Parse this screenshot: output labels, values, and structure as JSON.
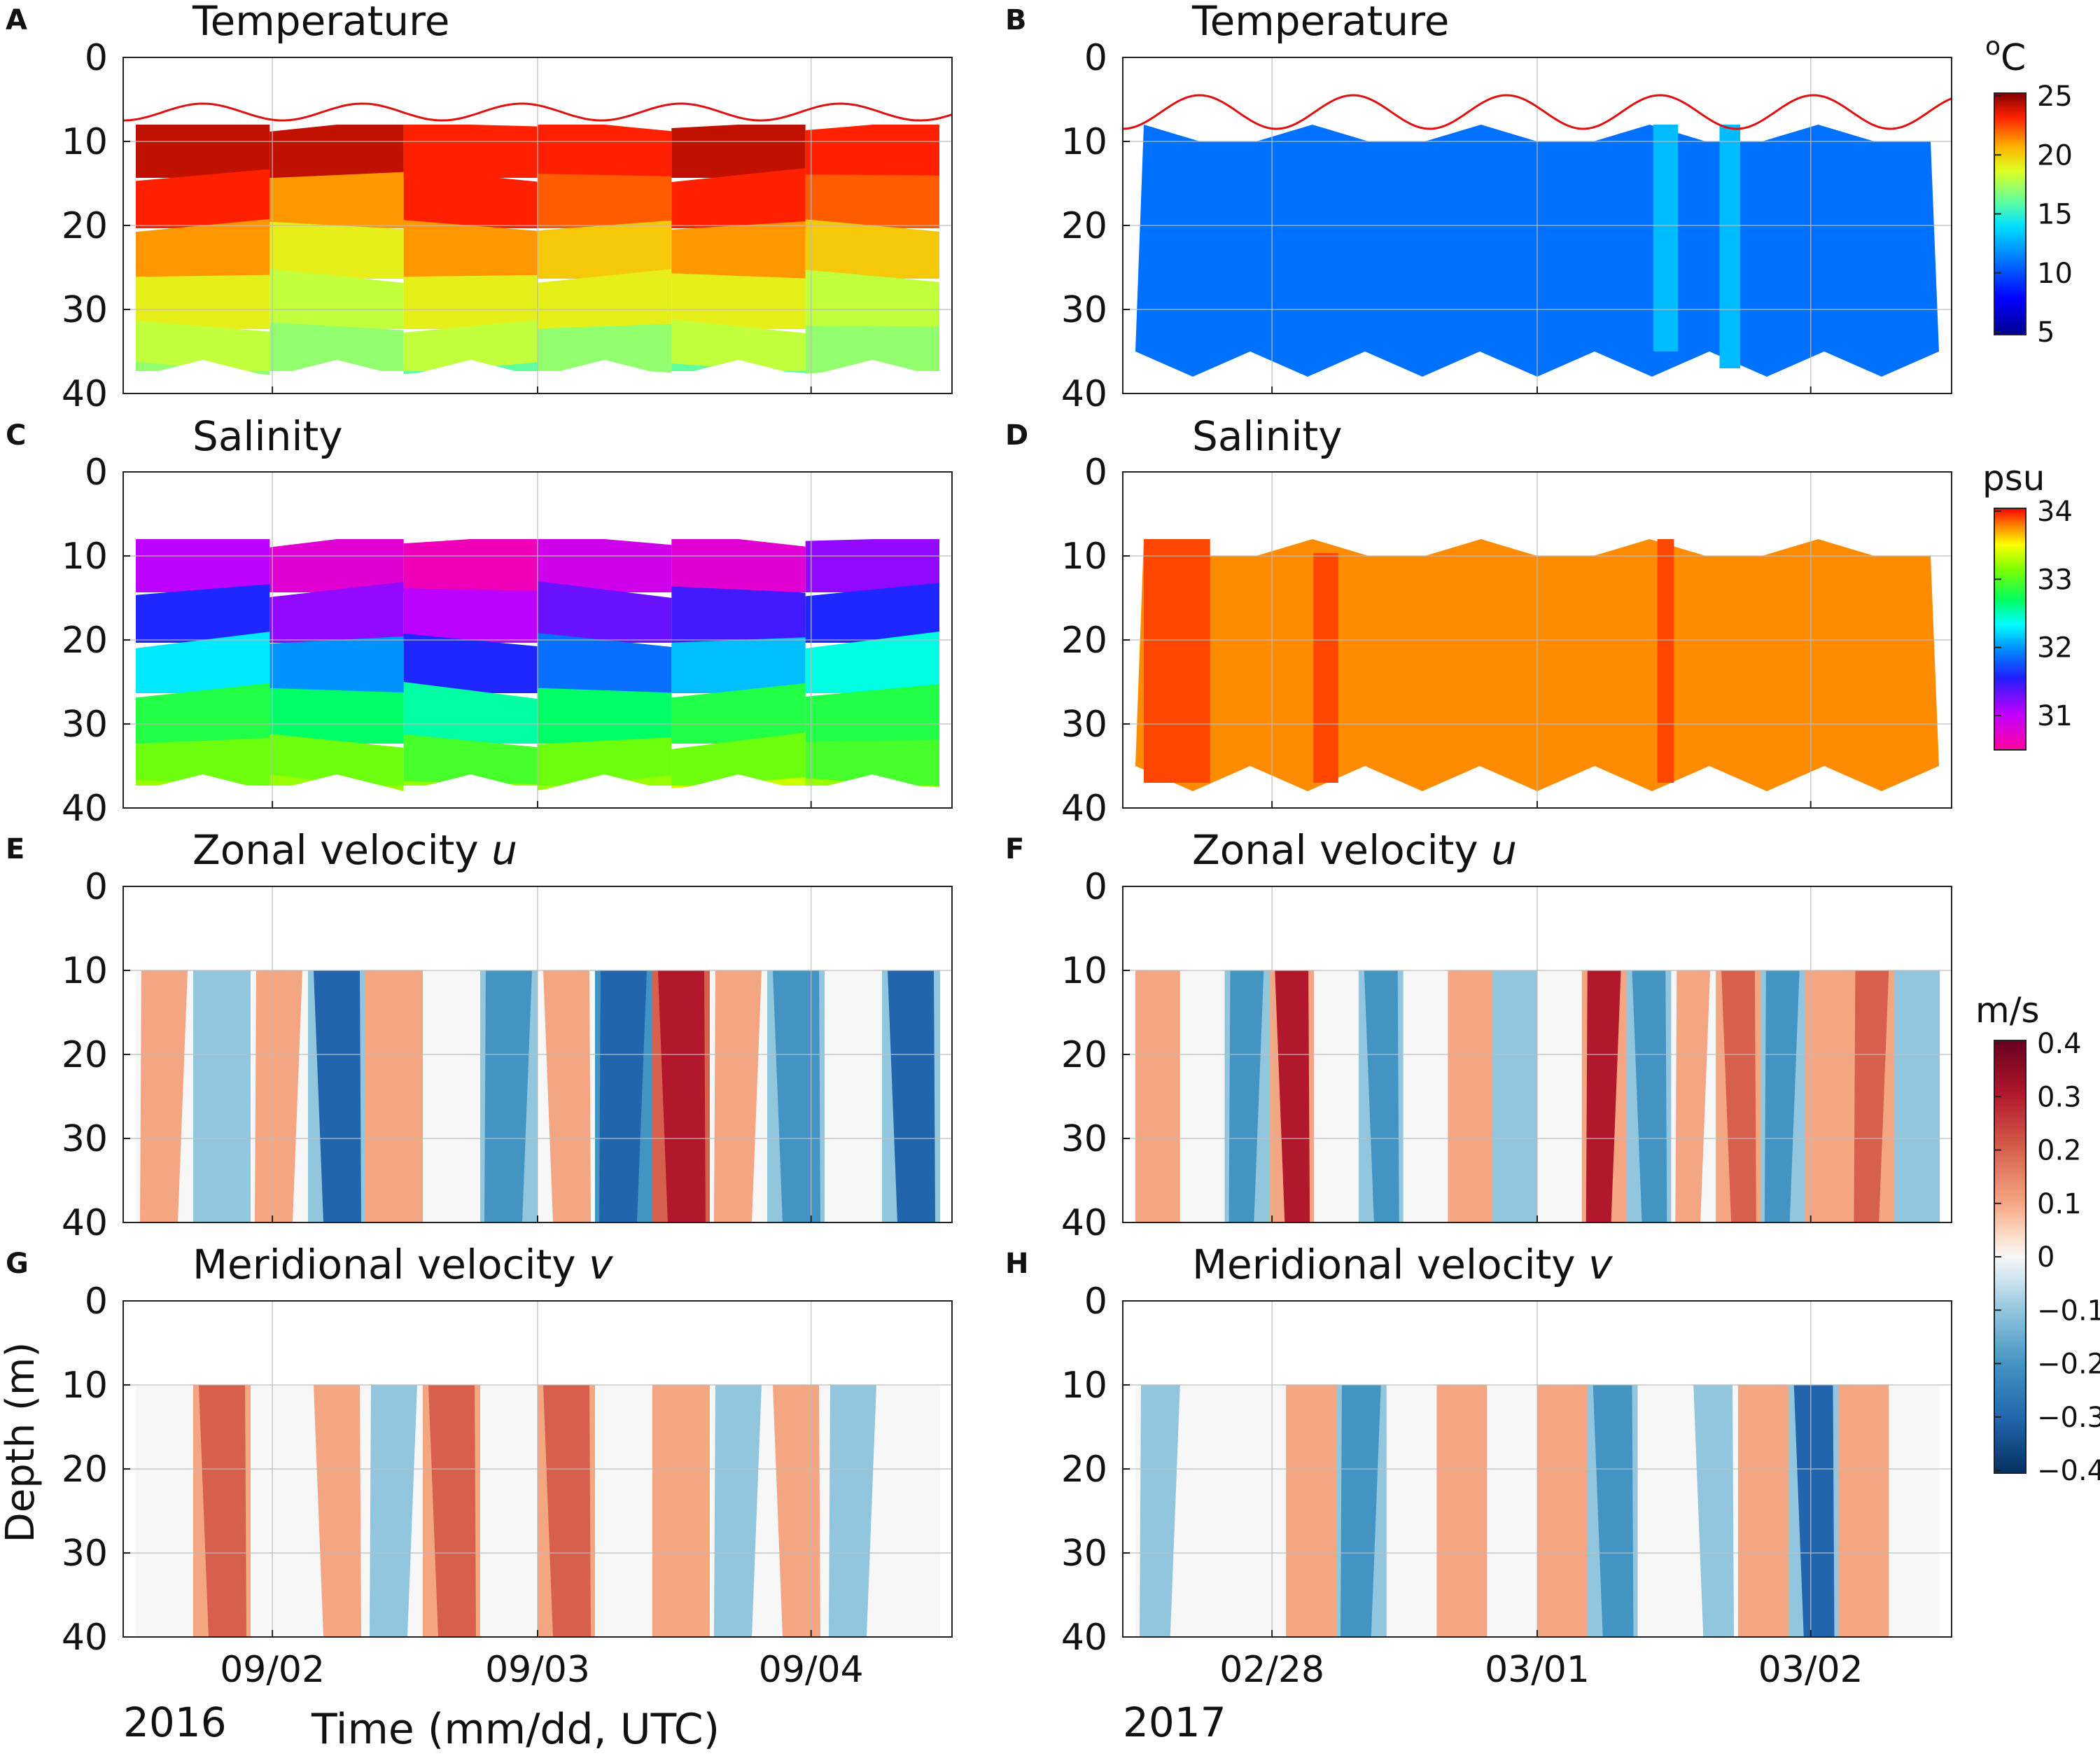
{
  "chart_data": {
    "type": "heatmap",
    "description_note": "Eight contour panels of depth (m) vs time; left column 2016 (09/01.5-09/04.5), right column 2017 (02/27.5-03/02.5). Values are approximate per-column layer estimates.",
    "depth_ticks": [
      "0",
      "10",
      "20",
      "30",
      "40"
    ],
    "y_axis_label": "Depth (m)",
    "x_axis_label": "Time (mm/dd, UTC)",
    "years": {
      "left": "2016",
      "right": "2017"
    },
    "x_ticks_left": [
      "09/02",
      "09/03",
      "09/04"
    ],
    "x_ticks_right": [
      "02/28",
      "03/01",
      "03/02"
    ],
    "colorbars": {
      "temperature": {
        "unit": "°C",
        "unit_base": "o",
        "unit_main": "C",
        "ticks": [
          "25",
          "20",
          "15",
          "10",
          "5"
        ],
        "range": [
          5,
          25
        ]
      },
      "salinity": {
        "unit": "psu",
        "ticks": [
          "34",
          "33",
          "32",
          "31"
        ],
        "range": [
          30.75,
          34
        ]
      },
      "velocity": {
        "unit": "m/s",
        "ticks": [
          "0.4",
          "0.3",
          "0.2",
          "0.1",
          "0",
          "−0.1",
          "−0.2",
          "−0.3",
          "−0.4"
        ],
        "range": [
          -0.4,
          0.4
        ]
      }
    },
    "panels": [
      {
        "letter": "A",
        "title": "Temperature",
        "variable": "temperature",
        "surface_line": "sine period ~0.5 day, depth 5.5-7.5 m",
        "layers_depth_m": [
          8,
          14,
          20,
          26,
          32,
          37
        ],
        "columns_time": [
          "09/01.5",
          "09/02",
          "09/02.5",
          "09/03",
          "09/03.5",
          "09/04",
          "09/04.5"
        ],
        "values": [
          [
            24,
            23.5,
            23,
            22.5,
            23.5,
            23
          ],
          [
            23,
            21,
            23,
            22,
            22.5,
            21.5
          ],
          [
            21,
            19,
            21,
            20,
            21,
            19.5
          ],
          [
            19,
            18,
            19,
            18.5,
            19,
            18
          ],
          [
            18,
            17,
            17.5,
            17,
            17.5,
            17
          ],
          [
            16.5,
            16.5,
            16,
            16.5,
            16,
            16.5
          ]
        ]
      },
      {
        "letter": "B",
        "title": "Temperature",
        "variable": "temperature",
        "surface_line": "sine period ~0.5 day, depth 4.5-8.5 m",
        "uniform_value": 11,
        "warmer_strip_value": 12.5
      },
      {
        "letter": "C",
        "title": "Salinity",
        "variable": "salinity",
        "layers_depth_m": [
          8,
          14,
          20,
          26,
          32,
          37
        ],
        "values": [
          [
            31.3,
            31.0,
            30.9,
            31.1,
            31.0,
            31.4
          ],
          [
            31.8,
            31.4,
            31.2,
            31.5,
            31.6,
            31.8
          ],
          [
            32.4,
            32.1,
            31.8,
            32.0,
            32.3,
            32.5
          ],
          [
            32.9,
            32.8,
            32.6,
            32.7,
            32.9,
            32.9
          ],
          [
            33.1,
            33.1,
            33.0,
            33.1,
            33.1,
            33.0
          ],
          [
            33.3,
            33.2,
            33.3,
            33.2,
            33.4,
            33.3
          ]
        ]
      },
      {
        "letter": "D",
        "title": "Salinity",
        "variable": "salinity",
        "uniform_value": 33.75,
        "saltier_strip_value": 33.9
      },
      {
        "letter": "E",
        "title": "Zonal velocity",
        "italic": "u",
        "variable": "u",
        "columns_values": [
          0.05,
          -0.15,
          0.08,
          -0.3,
          0.1,
          -0.05,
          -0.25,
          0.08,
          -0.35,
          0.3,
          0.05,
          -0.2,
          0.02,
          -0.3
        ]
      },
      {
        "letter": "F",
        "title": "Zonal velocity",
        "italic": "u",
        "variable": "u",
        "columns_values": [
          0.1,
          -0.05,
          -0.2,
          0.25,
          -0.05,
          -0.25,
          0.0,
          0.1,
          -0.15,
          0.0,
          0.25,
          -0.2,
          0.05,
          0.2,
          -0.2,
          0.1,
          0.2,
          -0.15
        ]
      },
      {
        "letter": "G",
        "title": "Meridional velocity",
        "italic": "v",
        "variable": "v",
        "columns_values": [
          0.02,
          0.2,
          -0.05,
          0.05,
          -0.1,
          0.15,
          -0.05,
          0.2,
          -0.05,
          0.1,
          -0.1,
          0.05,
          -0.1,
          0.02
        ]
      },
      {
        "letter": "H",
        "title": "Meridional velocity",
        "italic": "v",
        "variable": "v",
        "columns_values": [
          -0.1,
          0.0,
          -0.05,
          0.1,
          -0.25,
          0.0,
          0.1,
          -0.05,
          0.1,
          -0.25,
          0.0,
          -0.1,
          0.1,
          -0.3,
          0.1,
          0.0
        ]
      }
    ]
  }
}
